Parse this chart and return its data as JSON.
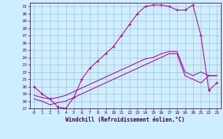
{
  "xlabel": "Windchill (Refroidissement éolien,°C)",
  "bg_color": "#cceeff",
  "line_color": "#aa00aa",
  "grid_color": "#aabbcc",
  "xlim": [
    -0.5,
    23.5
  ],
  "ylim": [
    17,
    31.5
  ],
  "xticks": [
    0,
    1,
    2,
    3,
    4,
    5,
    6,
    7,
    8,
    9,
    10,
    11,
    12,
    13,
    14,
    15,
    16,
    17,
    18,
    19,
    20,
    21,
    22,
    23
  ],
  "yticks": [
    17,
    18,
    19,
    20,
    21,
    22,
    23,
    24,
    25,
    26,
    27,
    28,
    29,
    30,
    31
  ],
  "line1_x": [
    0,
    1,
    2,
    3,
    4,
    5,
    6,
    7,
    8,
    9,
    10,
    11,
    12,
    13,
    14,
    15,
    16,
    17,
    18,
    19,
    20,
    21,
    22,
    23
  ],
  "line1_y": [
    20.0,
    19.0,
    18.3,
    17.2,
    17.0,
    18.5,
    21.0,
    22.5,
    23.5,
    24.5,
    25.5,
    27.0,
    28.5,
    30.0,
    31.0,
    31.2,
    31.2,
    31.0,
    30.5,
    30.5,
    31.2,
    27.0,
    19.5,
    20.5
  ],
  "line2_x": [
    0,
    1,
    2,
    3,
    4,
    5,
    6,
    7,
    8,
    9,
    10,
    11,
    12,
    13,
    14,
    15,
    16,
    17,
    18,
    19,
    20,
    21,
    22,
    23
  ],
  "line2_y": [
    18.8,
    18.5,
    18.3,
    18.5,
    18.8,
    19.3,
    19.8,
    20.3,
    20.8,
    21.3,
    21.8,
    22.3,
    22.8,
    23.3,
    23.8,
    24.0,
    24.5,
    24.8,
    24.8,
    22.0,
    21.5,
    22.0,
    21.5,
    21.5
  ],
  "line3_x": [
    0,
    1,
    2,
    3,
    4,
    5,
    6,
    7,
    8,
    9,
    10,
    11,
    12,
    13,
    14,
    15,
    16,
    17,
    18,
    19,
    20,
    21,
    22,
    23
  ],
  "line3_y": [
    18.3,
    18.0,
    17.5,
    17.8,
    18.0,
    18.5,
    19.0,
    19.5,
    20.0,
    20.5,
    21.0,
    21.5,
    22.0,
    22.5,
    23.0,
    23.5,
    24.0,
    24.5,
    24.5,
    21.5,
    21.0,
    20.5,
    21.5,
    21.5
  ]
}
